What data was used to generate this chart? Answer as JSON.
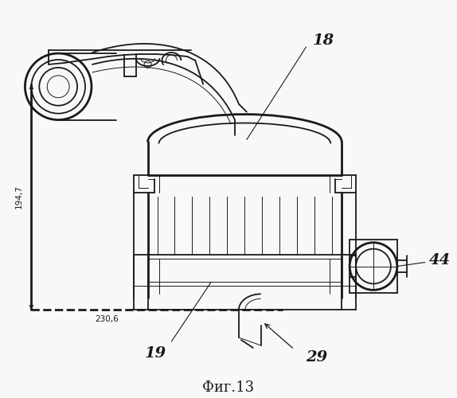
{
  "title": "Фиг.13",
  "background_color": "#f8f8f8",
  "line_color": "#1a1a1a",
  "label_18": "18",
  "label_19": "19",
  "label_29": "29",
  "label_44": "44",
  "dim_vertical": "194,7",
  "dim_horizontal": "230,6",
  "fig_width": 5.74,
  "fig_height": 5.0,
  "dpi": 100
}
